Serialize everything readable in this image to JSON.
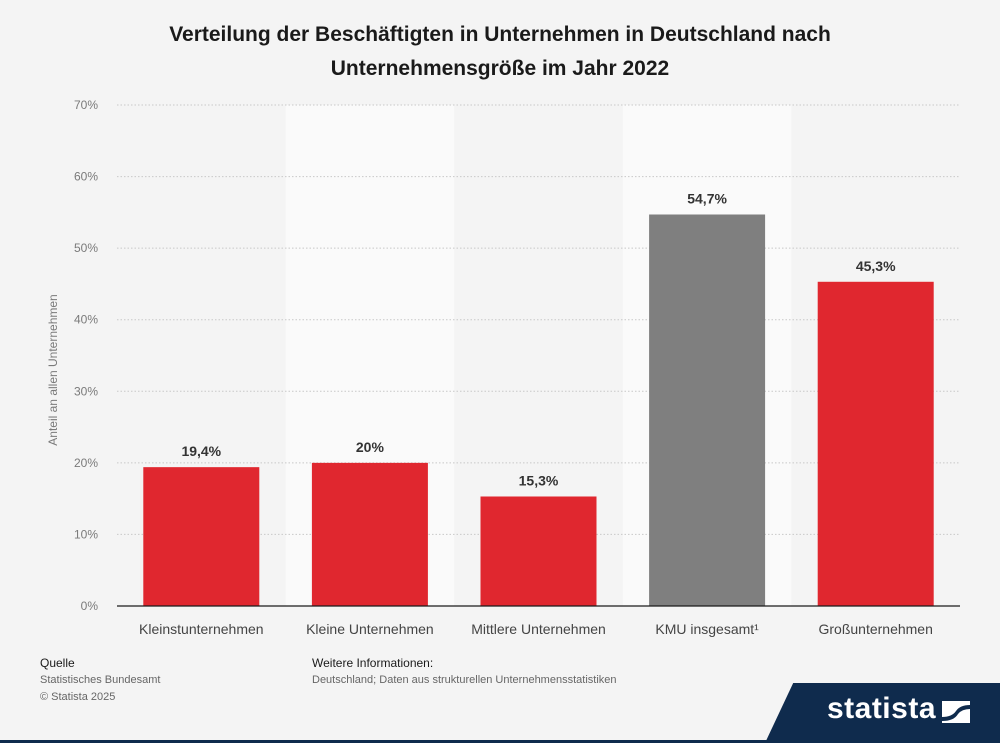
{
  "chart_data": {
    "type": "bar",
    "title_line1": "Verteilung der Beschäftigten in Unternehmen in Deutschland nach",
    "title_line2": "Unternehmensgröße im Jahr 2022",
    "ylabel": "Anteil an allen Unternehmen",
    "xlabel": "",
    "ylim": [
      0,
      70
    ],
    "yticks": [
      0,
      10,
      20,
      30,
      40,
      50,
      60,
      70
    ],
    "ytick_labels": [
      "0%",
      "10%",
      "20%",
      "30%",
      "40%",
      "50%",
      "60%",
      "70%"
    ],
    "categories": [
      "Kleinstunternehmen",
      "Kleine Unternehmen",
      "Mittlere Unternehmen",
      "KMU insgesamt¹",
      "Großunternehmen"
    ],
    "values": [
      19.4,
      20,
      15.3,
      54.7,
      45.3
    ],
    "value_labels": [
      "19,4%",
      "20%",
      "15,3%",
      "54,7%",
      "45,3%"
    ],
    "colors": [
      "#e0272f",
      "#e0272f",
      "#e0272f",
      "#7f7f7f",
      "#e0272f"
    ],
    "grid": true
  },
  "footer": {
    "source_heading": "Quelle",
    "source": "Statistisches Bundesamt",
    "copyright": "© Statista 2025",
    "info_heading": "Weitere Informationen:",
    "info": "Deutschland; Daten aus strukturellen Unternehmensstatistiken"
  },
  "brand": {
    "name": "statista",
    "color": "#0f2b4d"
  }
}
